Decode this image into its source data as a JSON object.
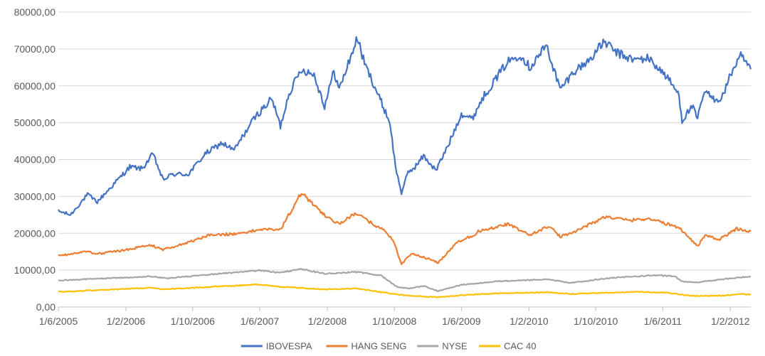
{
  "chart_data": {
    "type": "line",
    "title": "",
    "xlabel": "",
    "ylabel": "",
    "ylim": [
      0,
      80000
    ],
    "yticks": [
      0,
      10000,
      20000,
      30000,
      40000,
      50000,
      60000,
      70000,
      80000
    ],
    "ytick_labels": [
      "0,00",
      "10000,00",
      "20000,00",
      "30000,00",
      "40000,00",
      "50000,00",
      "60000,00",
      "70000,00",
      "80000,00"
    ],
    "xlim": [
      "2005-06-01",
      "2012-04-15"
    ],
    "xticks": [
      "2005-06-01",
      "2006-02-01",
      "2006-10-01",
      "2007-06-01",
      "2008-02-01",
      "2008-10-01",
      "2009-06-01",
      "2010-02-01",
      "2010-10-01",
      "2011-06-01",
      "2012-02-01"
    ],
    "xtick_labels": [
      "1/6/2005",
      "1/2/2006",
      "1/10/2006",
      "1/6/2007",
      "1/2/2008",
      "1/10/2008",
      "1/6/2009",
      "1/2/2010",
      "1/10/2010",
      "1/6/2011",
      "1/2/2012"
    ],
    "grid": "horizontal",
    "legend_position": "bottom",
    "series": [
      {
        "name": "IBOVESPA",
        "color": "#4472C4",
        "points": [
          [
            "2005-06-01",
            26000
          ],
          [
            "2005-07-15",
            25000
          ],
          [
            "2005-09-15",
            30500
          ],
          [
            "2005-10-20",
            28500
          ],
          [
            "2005-12-15",
            33000
          ],
          [
            "2006-02-15",
            38000
          ],
          [
            "2006-04-01",
            37500
          ],
          [
            "2006-05-10",
            41500
          ],
          [
            "2006-06-15",
            34500
          ],
          [
            "2006-07-20",
            36000
          ],
          [
            "2006-09-15",
            36000
          ],
          [
            "2006-11-15",
            41500
          ],
          [
            "2007-01-15",
            44500
          ],
          [
            "2007-02-28",
            42500
          ],
          [
            "2007-04-15",
            48000
          ],
          [
            "2007-05-15",
            51500
          ],
          [
            "2007-07-15",
            56500
          ],
          [
            "2007-08-15",
            49000
          ],
          [
            "2007-09-15",
            58000
          ],
          [
            "2007-10-30",
            64500
          ],
          [
            "2007-12-15",
            63000
          ],
          [
            "2008-01-22",
            54500
          ],
          [
            "2008-02-25",
            64000
          ],
          [
            "2008-03-15",
            59000
          ],
          [
            "2008-05-20",
            73000
          ],
          [
            "2008-06-15",
            66000
          ],
          [
            "2008-07-15",
            61000
          ],
          [
            "2008-08-15",
            55500
          ],
          [
            "2008-09-15",
            50000
          ],
          [
            "2008-10-05",
            38000
          ],
          [
            "2008-10-27",
            31000
          ],
          [
            "2008-11-20",
            36500
          ],
          [
            "2008-12-15",
            38000
          ],
          [
            "2009-01-15",
            41000
          ],
          [
            "2009-03-01",
            37000
          ],
          [
            "2009-04-15",
            44000
          ],
          [
            "2009-06-01",
            52500
          ],
          [
            "2009-07-10",
            51000
          ],
          [
            "2009-08-15",
            56500
          ],
          [
            "2009-09-30",
            61500
          ],
          [
            "2009-11-15",
            66500
          ],
          [
            "2009-12-31",
            68500
          ],
          [
            "2010-02-05",
            65000
          ],
          [
            "2010-04-05",
            71000
          ],
          [
            "2010-05-25",
            59000
          ],
          [
            "2010-07-15",
            64000
          ],
          [
            "2010-09-01",
            66500
          ],
          [
            "2010-11-01",
            72000
          ],
          [
            "2010-12-15",
            69000
          ],
          [
            "2011-02-15",
            67000
          ],
          [
            "2011-04-10",
            67500
          ],
          [
            "2011-06-15",
            62500
          ],
          [
            "2011-07-30",
            57500
          ],
          [
            "2011-08-10",
            50500
          ],
          [
            "2011-09-15",
            54500
          ],
          [
            "2011-10-05",
            51000
          ],
          [
            "2011-10-30",
            58500
          ],
          [
            "2011-12-01",
            56500
          ],
          [
            "2011-12-31",
            56500
          ],
          [
            "2012-02-10",
            64500
          ],
          [
            "2012-03-10",
            68000
          ],
          [
            "2012-04-15",
            64500
          ]
        ]
      },
      {
        "name": "HANG SENG",
        "color": "#ED7D31",
        "points": [
          [
            "2005-06-01",
            13800
          ],
          [
            "2005-09-01",
            15000
          ],
          [
            "2005-11-01",
            14500
          ],
          [
            "2006-02-01",
            15500
          ],
          [
            "2006-05-01",
            16800
          ],
          [
            "2006-06-15",
            15600
          ],
          [
            "2006-09-01",
            17200
          ],
          [
            "2006-12-01",
            19500
          ],
          [
            "2007-03-01",
            19800
          ],
          [
            "2007-06-01",
            21000
          ],
          [
            "2007-08-15",
            21000
          ],
          [
            "2007-10-30",
            31000
          ],
          [
            "2007-12-15",
            27500
          ],
          [
            "2008-01-20",
            25000
          ],
          [
            "2008-03-15",
            22500
          ],
          [
            "2008-05-15",
            25500
          ],
          [
            "2008-07-15",
            22500
          ],
          [
            "2008-09-01",
            20500
          ],
          [
            "2008-09-30",
            17500
          ],
          [
            "2008-10-27",
            11500
          ],
          [
            "2008-12-01",
            14500
          ],
          [
            "2009-01-15",
            13500
          ],
          [
            "2009-03-09",
            12000
          ],
          [
            "2009-05-15",
            17500
          ],
          [
            "2009-07-15",
            19500
          ],
          [
            "2009-08-01",
            20500
          ],
          [
            "2009-11-15",
            22500
          ],
          [
            "2010-02-05",
            19500
          ],
          [
            "2010-04-15",
            22000
          ],
          [
            "2010-05-25",
            19000
          ],
          [
            "2010-08-01",
            21000
          ],
          [
            "2010-11-05",
            24500
          ],
          [
            "2011-01-30",
            23500
          ],
          [
            "2011-04-15",
            24000
          ],
          [
            "2011-06-15",
            22500
          ],
          [
            "2011-08-01",
            21500
          ],
          [
            "2011-09-15",
            18000
          ],
          [
            "2011-10-05",
            16500
          ],
          [
            "2011-11-01",
            19500
          ],
          [
            "2011-12-20",
            18200
          ],
          [
            "2012-02-25",
            21200
          ],
          [
            "2012-04-15",
            20500
          ]
        ]
      },
      {
        "name": "NYSE",
        "color": "#A5A5A5",
        "points": [
          [
            "2005-06-01",
            7200
          ],
          [
            "2006-05-01",
            8300
          ],
          [
            "2006-07-01",
            7800
          ],
          [
            "2007-01-01",
            9000
          ],
          [
            "2007-06-01",
            9900
          ],
          [
            "2007-08-15",
            9300
          ],
          [
            "2007-10-30",
            10300
          ],
          [
            "2008-01-22",
            9000
          ],
          [
            "2008-05-20",
            9500
          ],
          [
            "2008-08-15",
            8500
          ],
          [
            "2008-10-10",
            5500
          ],
          [
            "2008-11-20",
            5000
          ],
          [
            "2009-01-15",
            5700
          ],
          [
            "2009-03-09",
            4300
          ],
          [
            "2009-06-01",
            6000
          ],
          [
            "2009-10-15",
            7000
          ],
          [
            "2010-04-15",
            7500
          ],
          [
            "2010-07-01",
            6500
          ],
          [
            "2010-11-15",
            7800
          ],
          [
            "2011-04-30",
            8600
          ],
          [
            "2011-07-15",
            8300
          ],
          [
            "2011-08-10",
            6900
          ],
          [
            "2011-10-05",
            6700
          ],
          [
            "2012-01-15",
            7600
          ],
          [
            "2012-04-15",
            8300
          ]
        ]
      },
      {
        "name": "CAC 40",
        "color": "#FFC000",
        "points": [
          [
            "2005-06-01",
            4100
          ],
          [
            "2006-05-01",
            5200
          ],
          [
            "2006-06-15",
            4800
          ],
          [
            "2007-06-01",
            6100
          ],
          [
            "2007-08-15",
            5500
          ],
          [
            "2008-01-22",
            4800
          ],
          [
            "2008-05-20",
            5000
          ],
          [
            "2008-10-10",
            3400
          ],
          [
            "2008-11-20",
            3100
          ],
          [
            "2009-03-09",
            2600
          ],
          [
            "2009-06-01",
            3200
          ],
          [
            "2009-10-15",
            3700
          ],
          [
            "2010-04-15",
            4000
          ],
          [
            "2010-07-01",
            3500
          ],
          [
            "2011-02-15",
            4100
          ],
          [
            "2011-06-15",
            3900
          ],
          [
            "2011-09-15",
            3000
          ],
          [
            "2011-12-31",
            3100
          ],
          [
            "2012-03-15",
            3500
          ],
          [
            "2012-04-15",
            3300
          ]
        ]
      }
    ]
  }
}
